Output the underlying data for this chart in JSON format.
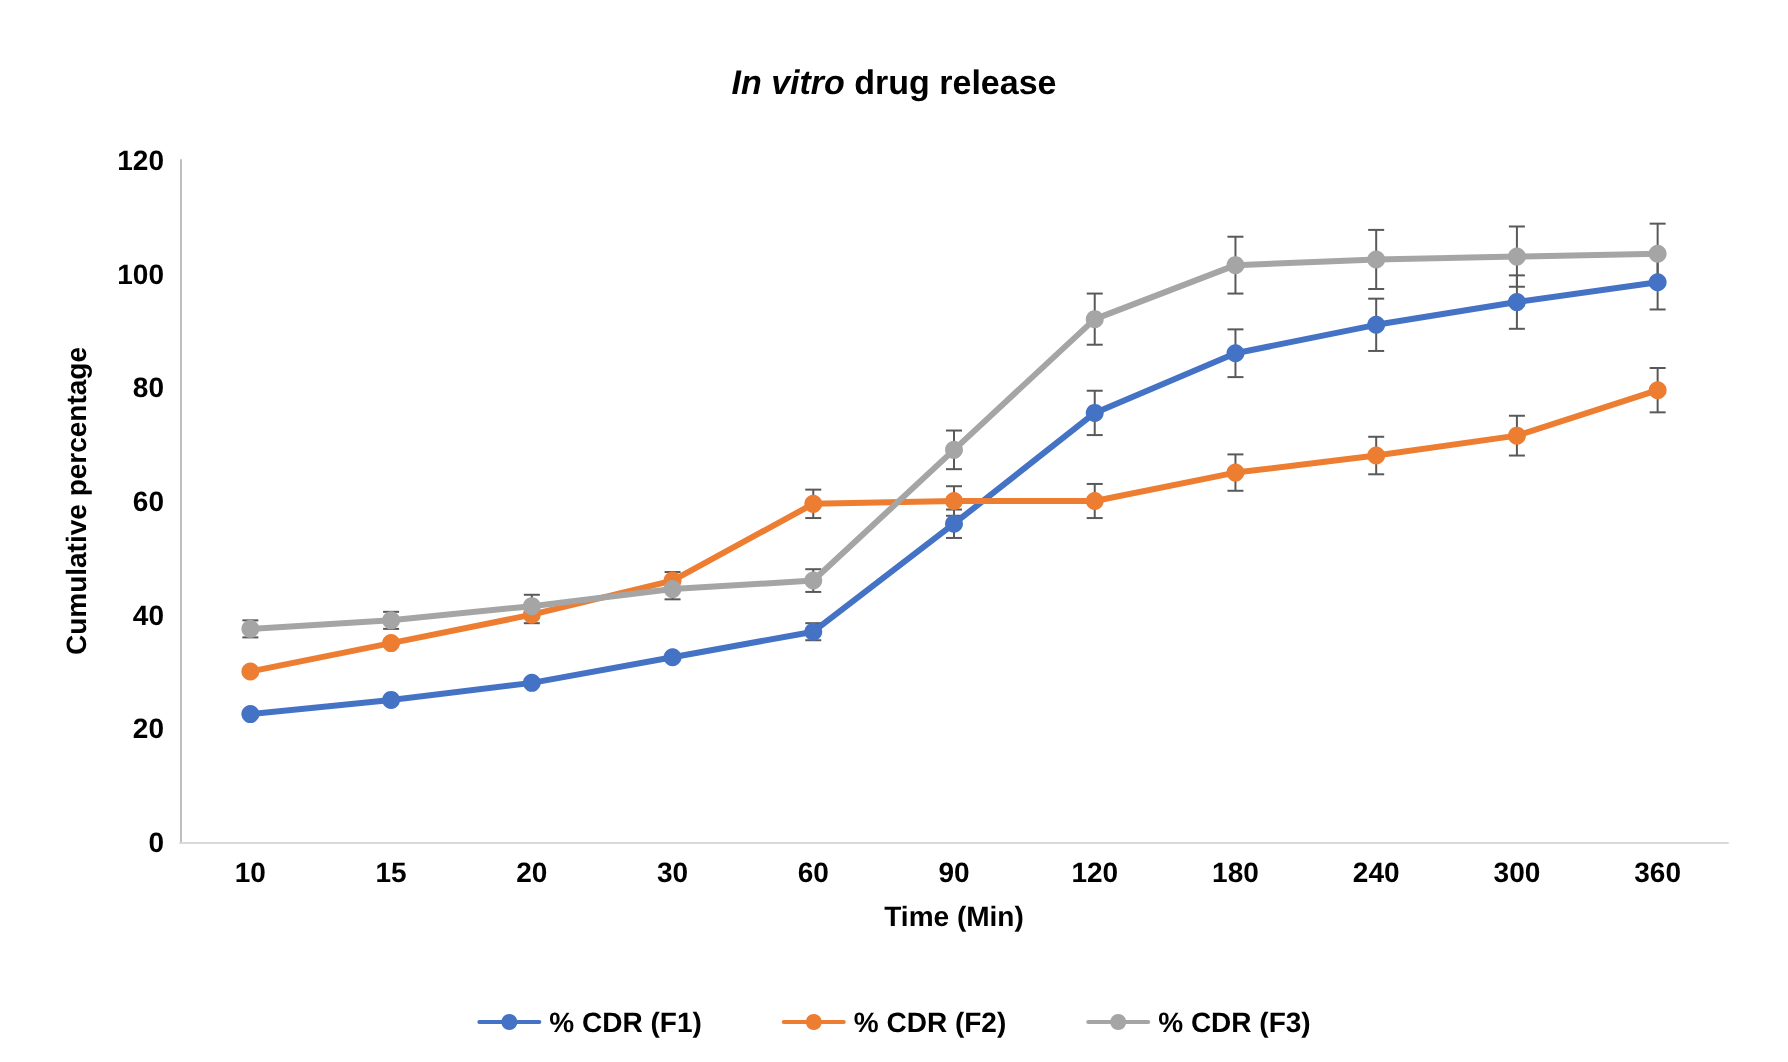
{
  "chart_data": {
    "type": "line",
    "title": "In vitro drug release",
    "xlabel": "Time (Min)",
    "ylabel": "Cumulative percentage",
    "categories": [
      "10",
      "15",
      "20",
      "30",
      "60",
      "90",
      "120",
      "180",
      "240",
      "300",
      "360"
    ],
    "series": [
      {
        "name": "% CDR (F1)",
        "color": "#4472c4",
        "values": [
          22.5,
          25,
          28,
          32.5,
          37,
          56,
          75.5,
          86,
          91,
          95,
          98.5
        ],
        "errors": [
          null,
          null,
          null,
          null,
          1.5,
          2.5,
          3.9,
          4.2,
          4.6,
          4.7,
          4.8
        ]
      },
      {
        "name": "% CDR (F2)",
        "color": "#ed7d31",
        "values": [
          30,
          35,
          40,
          46,
          59.5,
          60,
          60,
          65,
          68,
          71.5,
          79.5
        ],
        "errors": [
          null,
          null,
          1.5,
          1.5,
          2.5,
          2.6,
          3,
          3.2,
          3.3,
          3.5,
          3.9
        ]
      },
      {
        "name": "% CDR (F3)",
        "color": "#a5a5a5",
        "values": [
          37.5,
          39,
          41.5,
          44.5,
          46,
          69,
          92,
          101.5,
          102.5,
          103,
          103.5
        ],
        "errors": [
          1.5,
          1.5,
          2,
          1.8,
          2,
          3.4,
          4.5,
          5,
          5.2,
          5.3,
          5.3
        ]
      }
    ],
    "ylim": [
      0,
      120
    ],
    "yticks": [
      0,
      20,
      40,
      60,
      80,
      100,
      120
    ],
    "grid": false,
    "legend": "bottom",
    "marker": "circle",
    "line_style": "solid"
  }
}
